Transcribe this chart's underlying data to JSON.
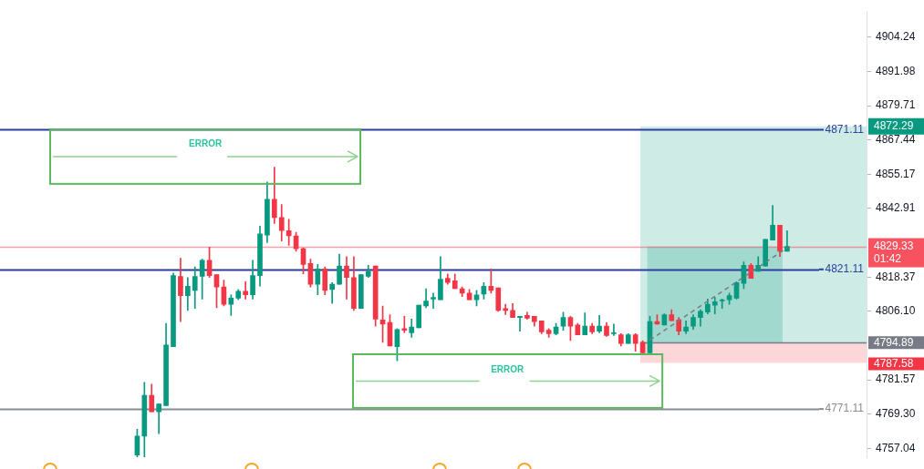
{
  "chart_data": {
    "type": "candlestick",
    "tick_labels": "y",
    "categories": [
      null,
      null,
      null,
      null,
      null,
      null,
      null,
      null,
      null,
      null,
      null,
      null,
      null,
      null,
      null,
      null,
      null,
      null,
      null,
      null,
      null,
      null,
      null,
      null,
      null,
      null,
      null,
      null,
      null,
      null,
      null,
      null,
      null,
      null,
      null,
      null,
      null,
      null,
      null,
      null,
      null,
      null,
      null,
      null,
      null,
      null,
      null,
      null,
      null,
      null,
      null,
      null,
      null,
      null,
      null,
      null,
      null,
      null,
      null,
      null,
      null,
      null,
      null,
      null,
      null,
      null,
      null,
      null,
      null,
      null,
      null,
      null,
      null,
      null,
      null,
      null,
      null,
      null,
      null,
      null,
      null,
      null,
      null,
      null,
      null,
      null,
      null,
      null,
      null,
      null,
      null,
      null,
      null,
      null,
      null,
      null,
      null,
      null,
      null,
      null,
      null,
      null,
      null,
      null,
      null,
      null,
      null,
      null,
      null,
      null,
      null,
      null,
      null,
      null,
      null,
      null,
      null,
      null,
      null,
      null,
      null
    ],
    "ohlc": [
      null,
      null,
      null,
      null,
      null,
      null,
      null,
      null,
      null,
      null,
      null,
      null,
      null,
      null,
      null,
      null,
      null,
      null,
      null,
      [
        4754.6,
        4763.9,
        4754.0,
        4761.4
      ],
      [
        4761.4,
        4780.7,
        4754.0,
        4776.0
      ],
      [
        4776.0,
        4780.0,
        4770.1,
        4770.1
      ],
      [
        4770.1,
        4772.9,
        4762.3,
        4772.9
      ],
      [
        4772.3,
        4801.8,
        4772.3,
        4794.0
      ],
      [
        4793.4,
        4819.8,
        4793.4,
        4818.9
      ],
      [
        4818.6,
        4825.1,
        4802.4,
        4811.7
      ],
      [
        4811.7,
        4818.2,
        4806.4,
        4815.1
      ],
      [
        4813.6,
        4822.0,
        4807.1,
        4818.6
      ],
      [
        4818.6,
        4824.8,
        4810.5,
        4824.4
      ],
      [
        4824.4,
        4829.1,
        4818.2,
        4818.9
      ],
      [
        4819.2,
        4819.2,
        4807.4,
        4814.8
      ],
      [
        4814.8,
        4817.3,
        4808.0,
        4808.6
      ],
      [
        4808.6,
        4812.0,
        4804.6,
        4810.8
      ],
      [
        4810.8,
        4813.9,
        4810.2,
        4813.3
      ],
      [
        4813.3,
        4816.7,
        4810.5,
        4812.0
      ],
      [
        4812.0,
        4824.4,
        4810.5,
        4818.9
      ],
      [
        4818.9,
        4836.6,
        4815.1,
        4833.8
      ],
      [
        4833.4,
        4852.4,
        4830.7,
        4846.2
      ],
      [
        4846.2,
        4857.7,
        4837.5,
        4839.7
      ],
      [
        4839.7,
        4844.3,
        4831.3,
        4835.0
      ],
      [
        4835.0,
        4839.0,
        4829.7,
        4833.1
      ],
      [
        4833.1,
        4834.4,
        4827.6,
        4828.5
      ],
      [
        4828.5,
        4828.8,
        4819.5,
        4822.9
      ],
      [
        4823.2,
        4824.8,
        4814.8,
        4815.8
      ],
      [
        4815.8,
        4822.9,
        4812.0,
        4821.3
      ],
      [
        4821.3,
        4822.0,
        4812.0,
        4813.6
      ],
      [
        4813.9,
        4816.4,
        4808.9,
        4815.8
      ],
      [
        4815.8,
        4826.6,
        4815.8,
        4822.3
      ],
      [
        4822.3,
        4825.7,
        4810.5,
        4818.2
      ],
      [
        4818.2,
        4825.7,
        4806.4,
        4807.1
      ],
      [
        4807.1,
        4819.2,
        4807.1,
        4819.2
      ],
      [
        4818.6,
        4822.6,
        4818.2,
        4820.4
      ],
      [
        4822.3,
        4822.3,
        4800.8,
        4803.3
      ],
      [
        4803.0,
        4808.0,
        4795.0,
        4801.5
      ],
      [
        4802.1,
        4804.9,
        4793.7,
        4793.7
      ],
      [
        4793.4,
        4799.9,
        4788.4,
        4799.6
      ],
      [
        4799.9,
        4804.3,
        4798.4,
        4799.3
      ],
      [
        4798.4,
        4803.3,
        4796.8,
        4800.5
      ],
      [
        4800.2,
        4808.3,
        4800.2,
        4808.3
      ],
      [
        4808.0,
        4814.2,
        4807.4,
        4809.8
      ],
      [
        4810.5,
        4812.6,
        4807.1,
        4811.1
      ],
      [
        4810.2,
        4825.7,
        4810.2,
        4817.6
      ],
      [
        4817.9,
        4819.5,
        4815.8,
        4816.4
      ],
      [
        4817.0,
        4819.5,
        4814.2,
        4814.2
      ],
      [
        4814.2,
        4814.8,
        4811.4,
        4812.6
      ],
      [
        4812.6,
        4813.9,
        4810.2,
        4810.2
      ],
      [
        4810.2,
        4813.6,
        4808.0,
        4812.0
      ],
      [
        4812.3,
        4816.4,
        4810.5,
        4815.1
      ],
      [
        4815.1,
        4821.3,
        4812.6,
        4813.6
      ],
      [
        4814.5,
        4814.5,
        4806.1,
        4806.4
      ],
      [
        4807.1,
        4808.6,
        4804.9,
        4806.4
      ],
      [
        4806.4,
        4808.9,
        4803.9,
        4803.9
      ],
      [
        4803.9,
        4804.3,
        4799.0,
        4804.3
      ],
      [
        4804.6,
        4805.8,
        4803.3,
        4803.6
      ],
      [
        4804.3,
        4804.3,
        4800.8,
        4802.4
      ],
      [
        4802.7,
        4802.7,
        4798.1,
        4798.7
      ],
      [
        4799.3,
        4799.9,
        4796.8,
        4798.1
      ],
      [
        4798.1,
        4801.8,
        4797.7,
        4800.5
      ],
      [
        4800.8,
        4805.8,
        4799.3,
        4803.9
      ],
      [
        4803.9,
        4804.3,
        4795.6,
        4800.8
      ],
      [
        4801.2,
        4801.8,
        4797.7,
        4797.7
      ],
      [
        4797.7,
        4805.5,
        4797.7,
        4800.8
      ],
      [
        4800.8,
        4801.8,
        4798.1,
        4798.7
      ],
      [
        4799.0,
        4804.6,
        4798.4,
        4800.8
      ],
      [
        4800.8,
        4802.1,
        4797.1,
        4797.4
      ],
      [
        4798.1,
        4801.5,
        4797.4,
        4798.4
      ],
      [
        4797.7,
        4798.1,
        4793.7,
        4794.6
      ],
      [
        4794.6,
        4798.1,
        4794.6,
        4797.7
      ],
      [
        4797.7,
        4798.1,
        4791.8,
        4794.6
      ],
      [
        4795.0,
        4795.6,
        4790.9,
        4791.2
      ],
      [
        4791.2,
        4804.3,
        4790.9,
        4802.4
      ],
      [
        4802.4,
        4804.9,
        4801.5,
        4801.5
      ],
      [
        4801.2,
        4805.2,
        4801.2,
        4804.9
      ],
      [
        4804.9,
        4806.7,
        4802.7,
        4802.7
      ],
      [
        4803.0,
        4803.9,
        4797.7,
        4799.0
      ],
      [
        4799.0,
        4802.7,
        4798.1,
        4800.5
      ],
      [
        4800.8,
        4804.9,
        4799.6,
        4803.9
      ],
      [
        4803.9,
        4806.7,
        4800.8,
        4806.1
      ],
      [
        4805.8,
        4810.5,
        4805.2,
        4808.6
      ],
      [
        4808.3,
        4811.1,
        4805.2,
        4809.5
      ],
      [
        4809.8,
        4810.5,
        4807.1,
        4810.2
      ],
      [
        4810.2,
        4812.6,
        4808.6,
        4811.7
      ],
      [
        4810.8,
        4816.7,
        4810.5,
        4816.4
      ],
      [
        4816.1,
        4823.8,
        4814.2,
        4822.6
      ],
      [
        4822.6,
        4823.2,
        4817.9,
        4817.9
      ],
      [
        4820.4,
        4825.7,
        4820.4,
        4822.6
      ],
      [
        4822.3,
        4831.9,
        4822.3,
        4831.9
      ],
      [
        4831.6,
        4844.0,
        4831.6,
        4836.9
      ],
      [
        4836.9,
        4836.9,
        4825.7,
        4827.6
      ],
      [
        4827.6,
        4835.0,
        4827.6,
        4829.3
      ],
      null,
      null,
      null,
      null,
      null,
      null,
      null,
      null,
      null,
      null,
      null
    ],
    "colors": [
      null,
      null,
      null,
      null,
      null,
      null,
      null,
      null,
      null,
      null,
      null,
      null,
      null,
      null,
      null,
      null,
      null,
      null,
      null,
      "#089981",
      "#089981",
      "#f23645",
      "#089981",
      "#089981",
      "#089981",
      "#f23645",
      "#089981",
      "#089981",
      "#089981",
      "#f23645",
      "#f23645",
      "#f23645",
      "#089981",
      "#089981",
      "#f23645",
      "#089981",
      "#089981",
      "#089981",
      "#f23645",
      "#f23645",
      "#f23645",
      "#f23645",
      "#f23645",
      "#f23645",
      "#089981",
      "#f23645",
      "#089981",
      "#089981",
      "#f23645",
      "#f23645",
      "#089981",
      "#089981",
      "#f23645",
      "#f23645",
      "#f23645",
      "#089981",
      "#f23645",
      "#089981",
      "#089981",
      "#089981",
      "#089981",
      "#089981",
      "#f23645",
      "#f23645",
      "#f23645",
      "#f23645",
      "#089981",
      "#089981",
      "#f23645",
      "#f23645",
      "#f23645",
      "#f23645",
      "#089981",
      "#f23645",
      "#f23645",
      "#f23645",
      "#f23645",
      "#089981",
      "#089981",
      "#f23645",
      "#f23645",
      "#089981",
      "#f23645",
      "#089981",
      "#f23645",
      "#089981",
      "#f23645",
      "#089981",
      "#f23645",
      "#f23645",
      "#089981",
      "#f23645",
      "#089981",
      "#f23645",
      "#f23645",
      "#089981",
      "#089981",
      "#089981",
      "#089981",
      "#089981",
      "#089981",
      "#089981",
      "#089981",
      "#089981",
      "#f23645",
      "#089981",
      "#089981",
      "#089981",
      "#f23645",
      "#089981",
      null,
      null,
      null,
      null,
      null,
      null,
      null,
      null,
      null,
      null,
      null
    ],
    "series": [
      {
        "type": "line",
        "color": "#787b86",
        "line_style": "dashed",
        "values": [
          null,
          null,
          null,
          null,
          null,
          null,
          null,
          null,
          null,
          null,
          null,
          null,
          null,
          null,
          null,
          null,
          null,
          null,
          null,
          null,
          null,
          null,
          null,
          null,
          null,
          null,
          null,
          null,
          null,
          null,
          null,
          null,
          null,
          null,
          null,
          null,
          null,
          null,
          null,
          null,
          null,
          null,
          null,
          null,
          null,
          null,
          null,
          null,
          null,
          null,
          null,
          null,
          null,
          null,
          null,
          null,
          null,
          null,
          null,
          null,
          null,
          null,
          null,
          null,
          null,
          null,
          null,
          null,
          null,
          null,
          null,
          null,
          null,
          null,
          null,
          null,
          null,
          null,
          null,
          null,
          null,
          null,
          null,
          null,
          null,
          null,
          null,
          null,
          null,
          null,
          4795.8,
          null,
          null,
          null,
          null,
          null,
          null,
          null,
          null,
          null,
          null,
          null,
          null,
          null,
          null,
          null,
          null,
          null,
          null,
          4828.8,
          null,
          null,
          null,
          null,
          null,
          null,
          null,
          null,
          null,
          null,
          null
        ]
      }
    ],
    "ylim": [
      4753.6,
      4913.6
    ],
    "yticks": [
      4904.24,
      4891.98,
      4879.71,
      4867.44,
      4855.17,
      4842.91,
      4818.37,
      {
        "value": 4806.1,
        "label": "4806.10"
      },
      4781.57,
      {
        "value": 4769.3,
        "label": "4769.30"
      },
      4757.04
    ],
    "ref_lines": [
      {
        "axis": "y",
        "value": 4871.11,
        "label": "4871.11",
        "color": "#2a3e9c"
      },
      {
        "axis": "y",
        "value": 4829.33,
        "label": "4829.33",
        "color": "#f7525f"
      },
      {
        "axis": "y",
        "value": 4821.11,
        "label": "4821.11",
        "color": "#2a3e9c"
      },
      {
        "axis": "y",
        "value": 4771.11,
        "label": "4771.11",
        "color": "#8a8c94"
      },
      {
        "axis": "y",
        "value": 4794.89,
        "label": "4794.89",
        "color": "#787b86"
      }
    ],
    "bands": [
      {
        "axis": "y",
        "from": 4794.89,
        "to": 4872.29,
        "label": "4872.29",
        "color": "#089981"
      },
      {
        "axis": "y",
        "from": 4787.58,
        "to": 4794.89,
        "label": "4787.58",
        "color": "#f23645"
      },
      {
        "axis": "y",
        "from": 4794.89,
        "to": 4829.33,
        "color": "#089981"
      }
    ],
    "annotations": [
      "ERROR",
      "ERROR",
      "01:42"
    ]
  }
}
